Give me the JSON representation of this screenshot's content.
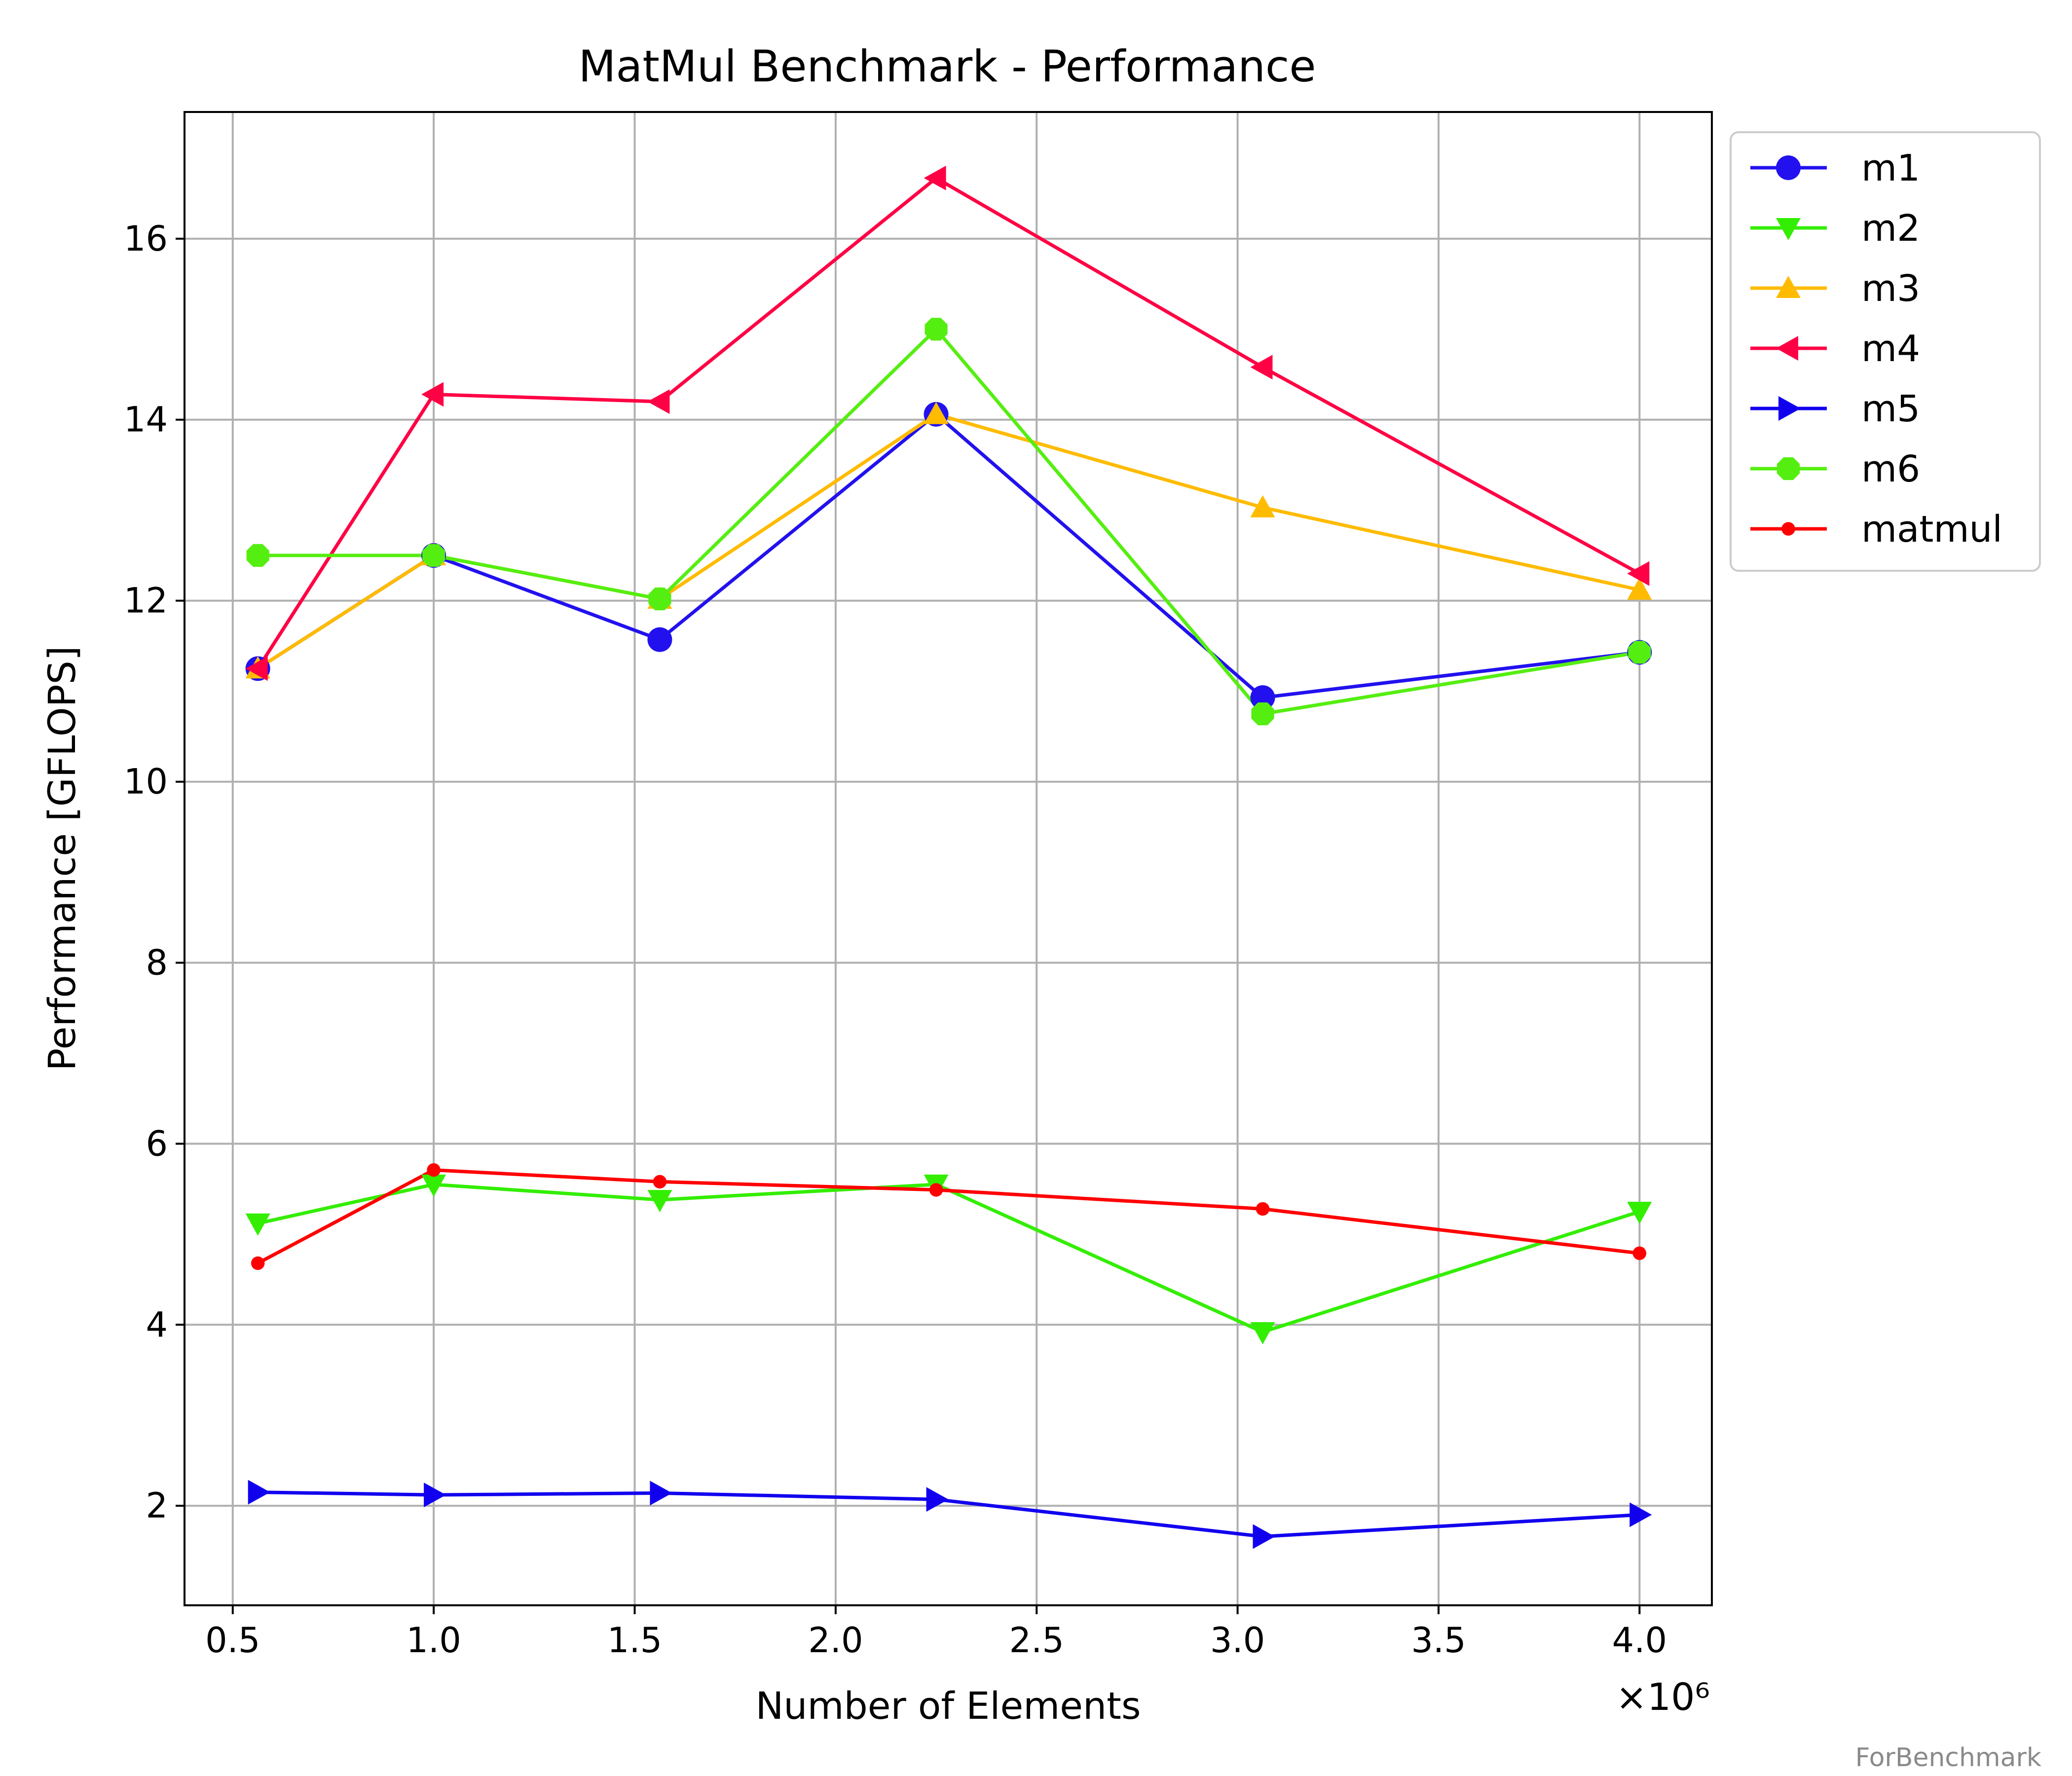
{
  "chart_data": {
    "type": "line",
    "title": "MatMul Benchmark - Performance",
    "xlabel": "Number of Elements",
    "ylabel": "Performance [GFLOPS]",
    "x_offset_label": "×10⁶",
    "x": [
      562500,
      1000000,
      1562500,
      2250000,
      3062500,
      4000000
    ],
    "xlim": [
      380000,
      4180000
    ],
    "ylim": [
      0.9,
      17.4
    ],
    "x_ticks": [
      500000,
      1000000,
      1500000,
      2000000,
      2500000,
      3000000,
      3500000,
      4000000
    ],
    "x_tick_labels": [
      "0.5",
      "1.0",
      "1.5",
      "2.0",
      "2.5",
      "3.0",
      "3.5",
      "4.0"
    ],
    "y_ticks": [
      2,
      4,
      6,
      8,
      10,
      12,
      14,
      16
    ],
    "y_tick_labels": [
      "2",
      "4",
      "6",
      "8",
      "10",
      "12",
      "14",
      "16"
    ],
    "grid": true,
    "legend_position": "outside-top-right",
    "series": [
      {
        "name": "m1",
        "color": "#2211ee",
        "marker": "circle",
        "values": [
          11.25,
          12.5,
          11.57,
          14.06,
          10.93,
          11.43
        ]
      },
      {
        "name": "m2",
        "color": "#33ee00",
        "marker": "triangle-down",
        "values": [
          5.12,
          5.55,
          5.38,
          5.55,
          3.92,
          5.25
        ]
      },
      {
        "name": "m3",
        "color": "#ffbb00",
        "marker": "triangle-up",
        "values": [
          11.25,
          12.5,
          12.02,
          14.06,
          13.03,
          12.12
        ]
      },
      {
        "name": "m4",
        "color": "#ff0044",
        "marker": "triangle-left",
        "values": [
          11.25,
          14.28,
          14.2,
          16.67,
          14.58,
          12.3
        ]
      },
      {
        "name": "m5",
        "color": "#1100ee",
        "marker": "triangle-right",
        "values": [
          2.15,
          2.12,
          2.14,
          2.07,
          1.66,
          1.9
        ]
      },
      {
        "name": "m6",
        "color": "#55ee11",
        "marker": "octagon",
        "values": [
          12.5,
          12.5,
          12.02,
          15.0,
          10.75,
          11.43
        ]
      },
      {
        "name": "matmul",
        "color": "#ff0000",
        "marker": "dot",
        "values": [
          4.68,
          5.71,
          5.58,
          5.49,
          5.28,
          4.79
        ]
      }
    ]
  },
  "watermark": "ForBenchmark"
}
